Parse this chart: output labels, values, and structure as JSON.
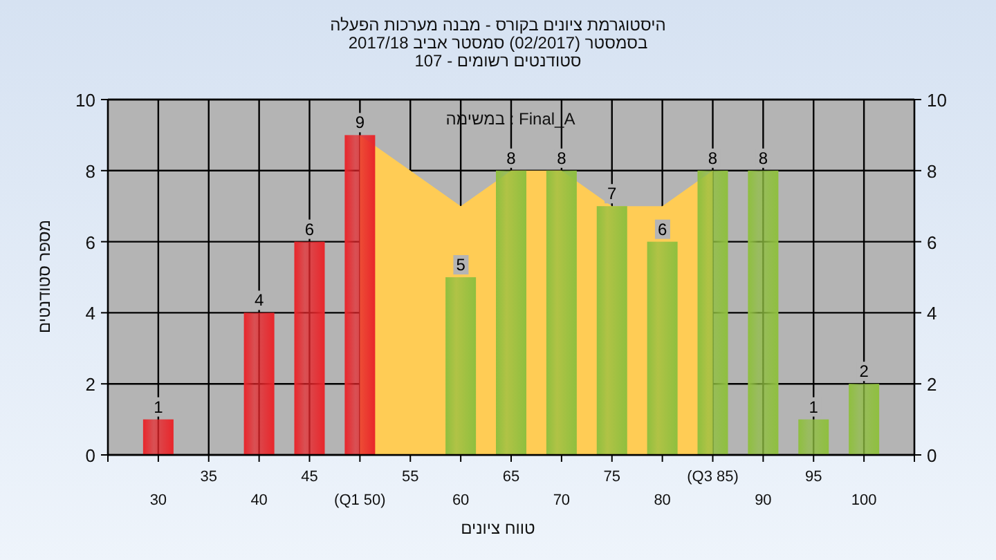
{
  "chart_data": {
    "type": "bar",
    "title": "היסטוגרמת ציונים בקורס - מבנה מערכות הפעלה",
    "subtitle": "בסמסטר  (02/2017)  סמסטר אביב 2017/18\nסטודנטים רשומים - 107",
    "xlabel": "טווח ציונים",
    "ylabel": "מספר סטודנטים",
    "annotations": [
      "במשימה : Final_A"
    ],
    "categories": [
      "30",
      "35",
      "40",
      "45",
      "(Q1 50)",
      "55",
      "60",
      "65",
      "70",
      "75",
      "80",
      "(Q3 85)",
      "90",
      "95",
      "100"
    ],
    "series": [
      {
        "type": "area",
        "color": "#ffcc55",
        "values": [
          null,
          null,
          null,
          null,
          9,
          8,
          7,
          8,
          8,
          7,
          7,
          8,
          null,
          null,
          null
        ]
      },
      {
        "type": "bar",
        "colors": [
          "#e8262b",
          null,
          "#e8262b",
          "#e8262b",
          "#e8262b",
          null,
          "#8fbf3f",
          "#8fbf3f",
          "#8fbf3f",
          "#8fbf3f",
          "#8fbf3f",
          "#8fbf3f",
          "#8fbf3f",
          "#8fbf3f",
          "#8fbf3f"
        ],
        "values": [
          1,
          null,
          4,
          6,
          9,
          null,
          5,
          8,
          8,
          7,
          6,
          8,
          8,
          1,
          2
        ],
        "value_labels": [
          "1",
          null,
          "4",
          "6",
          "9",
          null,
          "5",
          "8",
          "8",
          "7",
          "6",
          "8",
          "8",
          "1",
          "2"
        ]
      }
    ],
    "ylim": [
      0,
      10
    ],
    "yticks": [
      0,
      2,
      4,
      6,
      8,
      10
    ],
    "y2lim": [
      0,
      10
    ],
    "y2ticks": [
      0,
      2,
      4,
      6,
      8,
      10
    ],
    "grid": true
  }
}
